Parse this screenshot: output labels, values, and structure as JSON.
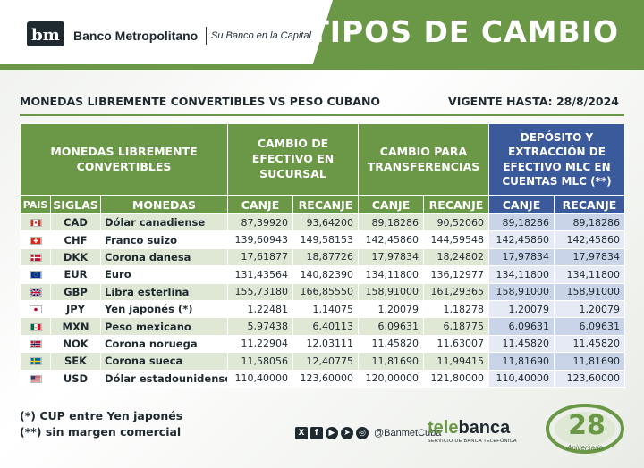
{
  "header": {
    "bank_name": "Banco Metropolitano",
    "slogan": "Su Banco en la Capital",
    "title": "TIPOS DE CAMBIO"
  },
  "subtitle": {
    "left": "MONEDAS LIBREMENTE CONVERTIBLES VS PESO CUBANO",
    "right": "VIGENTE HASTA: 28/8/2024"
  },
  "table": {
    "group_headers": {
      "currencies": "MONEDAS LIBREMENTE CONVERTIBLES",
      "cash": "CAMBIO DE EFECTIVO EN SUCURSAL",
      "transfers": "CAMBIO PARA TRANSFERENCIAS",
      "mlc": "DEPÓSITO Y EXTRACCIÓN DE EFECTIVO MLC EN CUENTAS MLC (**)"
    },
    "col_headers": {
      "pais": "PAIS",
      "siglas": "SIGLAS",
      "monedas": "MONEDAS",
      "canje1": "CANJE",
      "recanje1": "RECANJE",
      "canje2": "CANJE",
      "recanje2": "RECANJE",
      "canje3": "CANJE",
      "recanje3": "RECANJE"
    },
    "rows": [
      {
        "flag": "canada-flag",
        "code": "CAD",
        "name": "Dólar canadiense",
        "cash_canje": "87,39920",
        "cash_recanje": "93,64200",
        "tr_canje": "89,18286",
        "tr_recanje": "90,52060",
        "mlc_canje": "89,18286",
        "mlc_recanje": "89,18286"
      },
      {
        "flag": "switzerland-flag",
        "code": "CHF",
        "name": "Franco suizo",
        "cash_canje": "139,60943",
        "cash_recanje": "149,58153",
        "tr_canje": "142,45860",
        "tr_recanje": "144,59548",
        "mlc_canje": "142,45860",
        "mlc_recanje": "142,45860"
      },
      {
        "flag": "denmark-flag",
        "code": "DKK",
        "name": "Corona danesa",
        "cash_canje": "17,61877",
        "cash_recanje": "18,87726",
        "tr_canje": "17,97834",
        "tr_recanje": "18,24802",
        "mlc_canje": "17,97834",
        "mlc_recanje": "17,97834"
      },
      {
        "flag": "eu-flag",
        "code": "EUR",
        "name": "Euro",
        "cash_canje": "131,43564",
        "cash_recanje": "140,82390",
        "tr_canje": "134,11800",
        "tr_recanje": "136,12977",
        "mlc_canje": "134,11800",
        "mlc_recanje": "134,11800"
      },
      {
        "flag": "uk-flag",
        "code": "GBP",
        "name": "Libra esterlina",
        "cash_canje": "155,73180",
        "cash_recanje": "166,85550",
        "tr_canje": "158,91000",
        "tr_recanje": "161,29365",
        "mlc_canje": "158,91000",
        "mlc_recanje": "158,91000"
      },
      {
        "flag": "japan-flag",
        "code": "JPY",
        "name": "Yen japonés (*)",
        "cash_canje": "1,22481",
        "cash_recanje": "1,14075",
        "tr_canje": "1,20079",
        "tr_recanje": "1,18278",
        "mlc_canje": "1,20079",
        "mlc_recanje": "1,20079"
      },
      {
        "flag": "mexico-flag",
        "code": "MXN",
        "name": "Peso mexicano",
        "cash_canje": "5,97438",
        "cash_recanje": "6,40113",
        "tr_canje": "6,09631",
        "tr_recanje": "6,18775",
        "mlc_canje": "6,09631",
        "mlc_recanje": "6,09631"
      },
      {
        "flag": "norway-flag",
        "code": "NOK",
        "name": "Corona noruega",
        "cash_canje": "11,22904",
        "cash_recanje": "12,03111",
        "tr_canje": "11,45820",
        "tr_recanje": "11,63007",
        "mlc_canje": "11,45820",
        "mlc_recanje": "11,45820"
      },
      {
        "flag": "sweden-flag",
        "code": "SEK",
        "name": "Corona sueca",
        "cash_canje": "11,58056",
        "cash_recanje": "12,40775",
        "tr_canje": "11,81690",
        "tr_recanje": "11,99415",
        "mlc_canje": "11,81690",
        "mlc_recanje": "11,81690"
      },
      {
        "flag": "usa-flag",
        "code": "USD",
        "name": "Dólar estadounidense",
        "cash_canje": "110,40000",
        "cash_recanje": "123,60000",
        "tr_canje": "120,00000",
        "tr_recanje": "121,80000",
        "mlc_canje": "110,40000",
        "mlc_recanje": "123,60000"
      }
    ]
  },
  "footer": {
    "note1": "(*) CUP entre Yen japonés",
    "note2": "(**) sin margen comercial",
    "social_handle": "@BanmetCuba",
    "social_icons": [
      "x-icon",
      "facebook-icon",
      "youtube-icon",
      "telegram-icon",
      "web-icon"
    ],
    "telebanca_tele": "tele",
    "telebanca_rest": "banca",
    "telebanca_sub": "SERVICIO DE BANCA TELEFÓNICA",
    "anniversary_number": "28",
    "anniversary_label": "Aniversario"
  },
  "colors": {
    "brand_green": "#6b9846",
    "mlc_blue": "#3a5a9c",
    "text_dark": "#1e2a30"
  }
}
